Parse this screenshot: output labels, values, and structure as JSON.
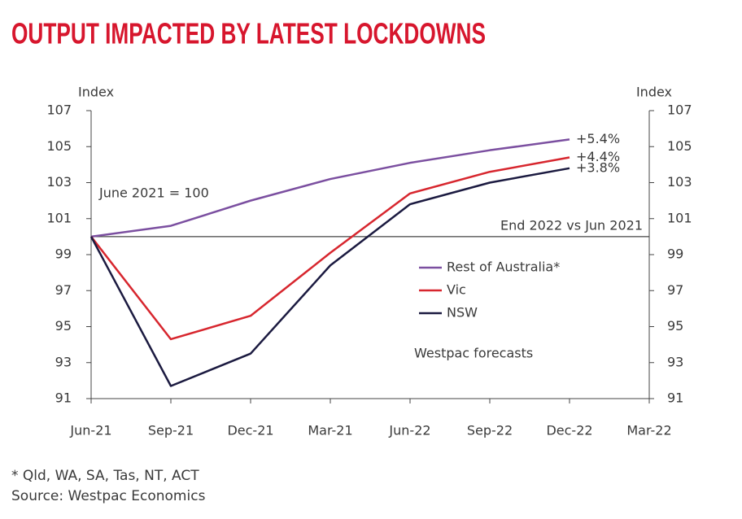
{
  "chart_data": {
    "type": "line",
    "title": "OUTPUT IMPACTED BY LATEST LOCKDOWNS",
    "ylabel": "Index",
    "y2label": "Index",
    "categories": [
      "Jun-21",
      "Sep-21",
      "Dec-21",
      "Mar-21",
      "Jun-22",
      "Sep-22",
      "Dec-22",
      "Mar-22"
    ],
    "series": [
      {
        "name": "Rest of Australia*",
        "color": "#7b4fa0",
        "values": [
          100,
          100.6,
          102.0,
          103.2,
          104.1,
          104.8,
          105.4,
          null
        ],
        "end_label": "+5.4%"
      },
      {
        "name": "Vic",
        "color": "#d7262e",
        "values": [
          100,
          94.3,
          95.6,
          99.1,
          102.4,
          103.6,
          104.4,
          null
        ],
        "end_label": "+4.4%"
      },
      {
        "name": "NSW",
        "color": "#1b1a40",
        "values": [
          100,
          91.7,
          93.5,
          98.4,
          101.8,
          103.0,
          103.8,
          null
        ],
        "end_label": "+3.8%"
      }
    ],
    "ylim": [
      91,
      107
    ],
    "yticks": [
      91,
      93,
      95,
      97,
      99,
      101,
      103,
      105,
      107
    ],
    "y2lim": [
      91,
      107
    ],
    "y2ticks": [
      91,
      93,
      95,
      97,
      99,
      101,
      103,
      105,
      107
    ],
    "reference_line": {
      "value": 100,
      "label": "End 2022 vs Jun 2021"
    },
    "annotations": [
      "June 2021 = 100",
      "Westpac forecasts"
    ],
    "notes": [
      "* Qld, WA, SA, Tas, NT, ACT",
      "Source: Westpac Economics"
    ]
  }
}
